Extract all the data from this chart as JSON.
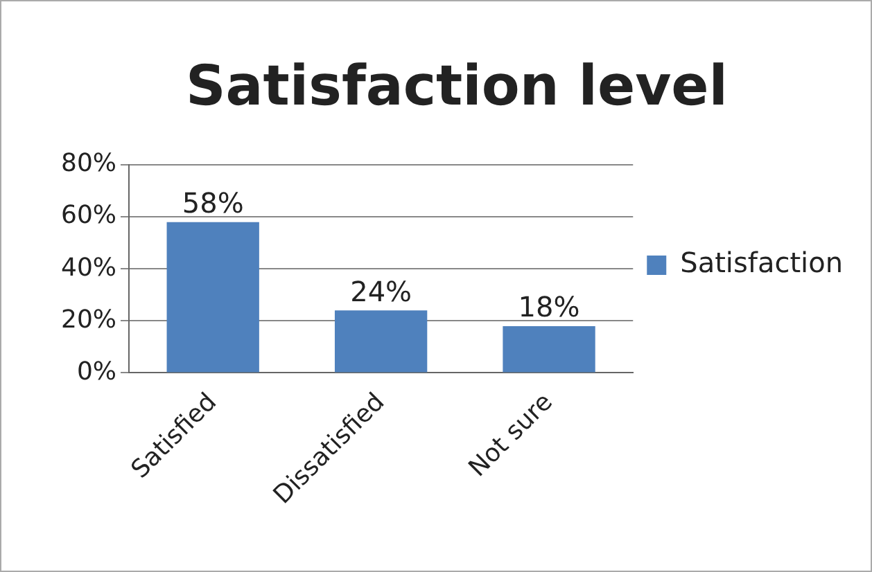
{
  "chart_data": {
    "type": "bar",
    "title": "Satisfaction level",
    "categories": [
      "Satisfied",
      "Dissatisfied",
      "Not sure"
    ],
    "series": [
      {
        "name": "Satisfaction",
        "color": "#4f81bd",
        "values": [
          58,
          24,
          18
        ],
        "value_labels": [
          "58%",
          "24%",
          "18%"
        ]
      }
    ],
    "ylim": [
      0,
      80
    ],
    "yticks": [
      {
        "value": 0,
        "label": "0%"
      },
      {
        "value": 20,
        "label": "20%"
      },
      {
        "value": 40,
        "label": "40%"
      },
      {
        "value": 60,
        "label": "60%"
      },
      {
        "value": 80,
        "label": "80%"
      }
    ],
    "grid": "y",
    "legend": "right"
  }
}
